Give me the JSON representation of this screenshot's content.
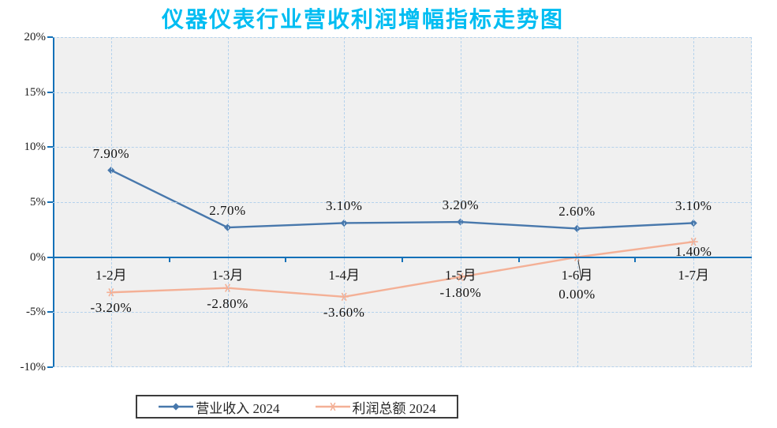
{
  "title": {
    "text": "仪器仪表行业营收利润增幅指标走势图",
    "color": "#00BDF2"
  },
  "colors": {
    "axis": "#1471B8",
    "grid": "#B5D2EC",
    "plot_background": "#F0F0F0",
    "label_text": "#111111",
    "revenue_series": "#4878AC",
    "profit_series": "#F4B096",
    "leader_line": "#333333"
  },
  "chart_data": {
    "type": "line",
    "title": "仪器仪表行业营收利润增幅指标走势图",
    "categories": [
      "1-2月",
      "1-3月",
      "1-4月",
      "1-5月",
      "1-6月",
      "1-7月"
    ],
    "series": [
      {
        "name": "营业收入 2024",
        "color": "#4878AC",
        "marker": "diamond",
        "values": [
          7.9,
          2.7,
          3.1,
          3.2,
          2.6,
          3.1
        ],
        "labels": [
          "7.90%",
          "2.70%",
          "3.10%",
          "3.20%",
          "2.60%",
          "3.10%"
        ]
      },
      {
        "name": "利润总额 2024",
        "color": "#F4B096",
        "marker": "asterisk",
        "values": [
          -3.2,
          -2.8,
          -3.6,
          -1.8,
          0.0,
          1.4
        ],
        "labels": [
          "-3.20%",
          "-2.80%",
          "-3.60%",
          "-1.80%",
          "0.00%",
          "1.40%"
        ]
      }
    ],
    "xlabel": "",
    "ylabel": "",
    "ylim": [
      -10,
      20
    ],
    "y_axis_ticks": [
      {
        "value": 20,
        "label": "20%"
      },
      {
        "value": 15,
        "label": "15%"
      },
      {
        "value": 10,
        "label": "10%"
      },
      {
        "value": 5,
        "label": "5%"
      },
      {
        "value": 0,
        "label": "0%"
      },
      {
        "value": -5,
        "label": "-5%"
      },
      {
        "value": -10,
        "label": "-10%"
      }
    ],
    "grid": true,
    "legend_position": "bottom"
  },
  "legend": {
    "items": [
      {
        "label": "营业收入 2024"
      },
      {
        "label": "利润总额 2024"
      }
    ]
  }
}
